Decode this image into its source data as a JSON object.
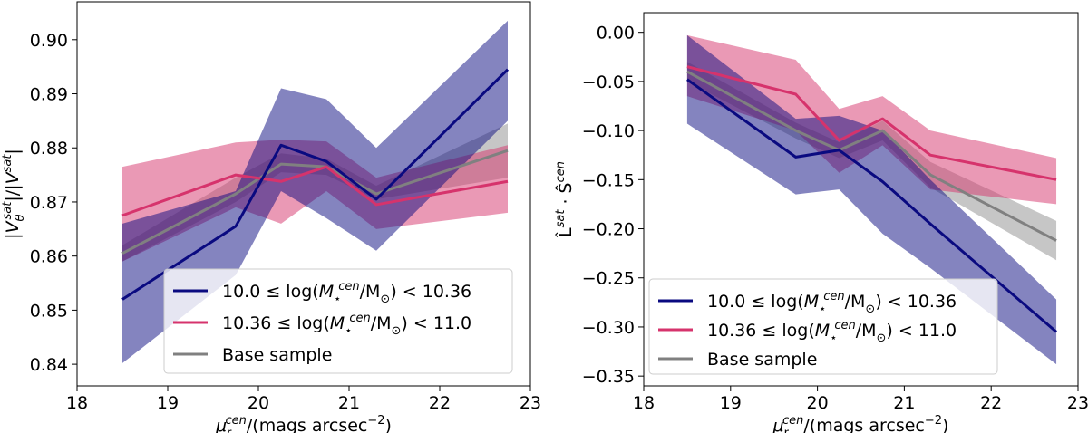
{
  "chart_data": [
    {
      "type": "line",
      "ylabel": "|V_θ^sat|/|V^sat|",
      "xlabel": "μ_r^cen/(mags arcsec^-2)",
      "xlim": [
        18,
        23
      ],
      "ylim": [
        0.836,
        0.907
      ],
      "xticks": [
        18,
        19,
        20,
        21,
        22,
        23
      ],
      "yticks": [
        0.84,
        0.85,
        0.86,
        0.87,
        0.88,
        0.89,
        0.9
      ],
      "ytick_labels": [
        "0.84",
        "0.85",
        "0.86",
        "0.87",
        "0.88",
        "0.89",
        "0.90"
      ],
      "grid": false,
      "legend_position": "lower-right",
      "series": [
        {
          "name": "Base sample",
          "color": "#808080",
          "x": [
            18.5,
            19.75,
            20.25,
            20.75,
            21.3,
            22.75
          ],
          "y": [
            0.8605,
            0.8715,
            0.877,
            0.8765,
            0.8715,
            0.8795
          ],
          "lower": [
            0.859,
            0.87,
            0.8755,
            0.875,
            0.8705,
            0.8745
          ],
          "upper": [
            0.862,
            0.8745,
            0.879,
            0.878,
            0.873,
            0.8845
          ]
        },
        {
          "name": "10.36 ≤ log(M_⋆^cen/M_⊙) < 11.0",
          "color": "#d6336c",
          "x": [
            18.5,
            19.75,
            20.25,
            20.75,
            21.3,
            22.75
          ],
          "y": [
            0.8675,
            0.875,
            0.8738,
            0.8765,
            0.8695,
            0.8738
          ],
          "lower": [
            0.859,
            0.869,
            0.866,
            0.872,
            0.865,
            0.868
          ],
          "upper": [
            0.8765,
            0.881,
            0.8815,
            0.8812,
            0.8745,
            0.8805
          ]
        },
        {
          "name": "10.0 ≤ log(M_⋆^cen/M_⊙) < 10.36",
          "color": "#0a0a80",
          "x": [
            18.5,
            19.75,
            20.25,
            20.75,
            21.3,
            22.75
          ],
          "y": [
            0.852,
            0.8655,
            0.8805,
            0.8775,
            0.8705,
            0.8945
          ],
          "lower": [
            0.8402,
            0.8565,
            0.872,
            0.867,
            0.861,
            0.885
          ],
          "upper": [
            0.866,
            0.872,
            0.891,
            0.889,
            0.88,
            0.9035
          ]
        }
      ]
    },
    {
      "type": "line",
      "ylabel": "L̂^sat · Ŝ^cen",
      "xlabel": "μ_r^cen/(mags arcsec^-2)",
      "xlim": [
        18,
        23
      ],
      "ylim": [
        -0.36,
        0.02
      ],
      "xticks": [
        18,
        19,
        20,
        21,
        22,
        23
      ],
      "yticks": [
        0.0,
        -0.05,
        -0.1,
        -0.15,
        -0.2,
        -0.25,
        -0.3,
        -0.35
      ],
      "ytick_labels": [
        "0.00",
        "−0.05",
        "−0.10",
        "−0.15",
        "−0.20",
        "−0.25",
        "−0.30",
        "−0.35"
      ],
      "grid": false,
      "legend_position": "lower-left",
      "series": [
        {
          "name": "Base sample",
          "color": "#808080",
          "x": [
            18.5,
            19.75,
            20.25,
            20.75,
            21.3,
            22.75
          ],
          "y": [
            -0.04,
            -0.1,
            -0.12,
            -0.1,
            -0.145,
            -0.212
          ],
          "lower": [
            -0.05,
            -0.108,
            -0.128,
            -0.11,
            -0.158,
            -0.232
          ],
          "upper": [
            -0.03,
            -0.092,
            -0.112,
            -0.09,
            -0.132,
            -0.192
          ]
        },
        {
          "name": "10.36 ≤ log(M_⋆^cen/M_⊙) < 11.0",
          "color": "#d6336c",
          "x": [
            18.5,
            19.75,
            20.25,
            20.75,
            21.3,
            22.75
          ],
          "y": [
            -0.035,
            -0.063,
            -0.11,
            -0.088,
            -0.125,
            -0.15
          ],
          "lower": [
            -0.065,
            -0.1,
            -0.143,
            -0.115,
            -0.16,
            -0.175
          ],
          "upper": [
            -0.003,
            -0.028,
            -0.078,
            -0.065,
            -0.1,
            -0.128
          ]
        },
        {
          "name": "10.0 ≤ log(M_⋆^cen/M_⊙) < 10.36",
          "color": "#0a0a80",
          "x": [
            18.5,
            19.75,
            20.25,
            20.75,
            21.3,
            22.75
          ],
          "y": [
            -0.048,
            -0.127,
            -0.12,
            -0.152,
            -0.195,
            -0.305
          ],
          "lower": [
            -0.093,
            -0.165,
            -0.16,
            -0.205,
            -0.24,
            -0.338
          ],
          "upper": [
            -0.003,
            -0.088,
            -0.085,
            -0.1,
            -0.15,
            -0.272
          ]
        }
      ]
    }
  ],
  "legend": {
    "entries": [
      {
        "prefix": "10.0 ≤ log(",
        "main": "M",
        "sub": "⋆",
        "sup": "cen",
        "mid": "/M",
        "sub2": "⊙",
        "suffix": ") < 10.36",
        "color": "#0a0a80"
      },
      {
        "prefix": "10.36 ≤ log(",
        "main": "M",
        "sub": "⋆",
        "sup": "cen",
        "mid": "/M",
        "sub2": "⊙",
        "suffix": ") < 11.0",
        "color": "#d6336c"
      },
      {
        "prefix": "Base sample",
        "main": "",
        "sub": "",
        "sup": "",
        "mid": "",
        "sub2": "",
        "suffix": "",
        "color": "#808080"
      }
    ]
  }
}
